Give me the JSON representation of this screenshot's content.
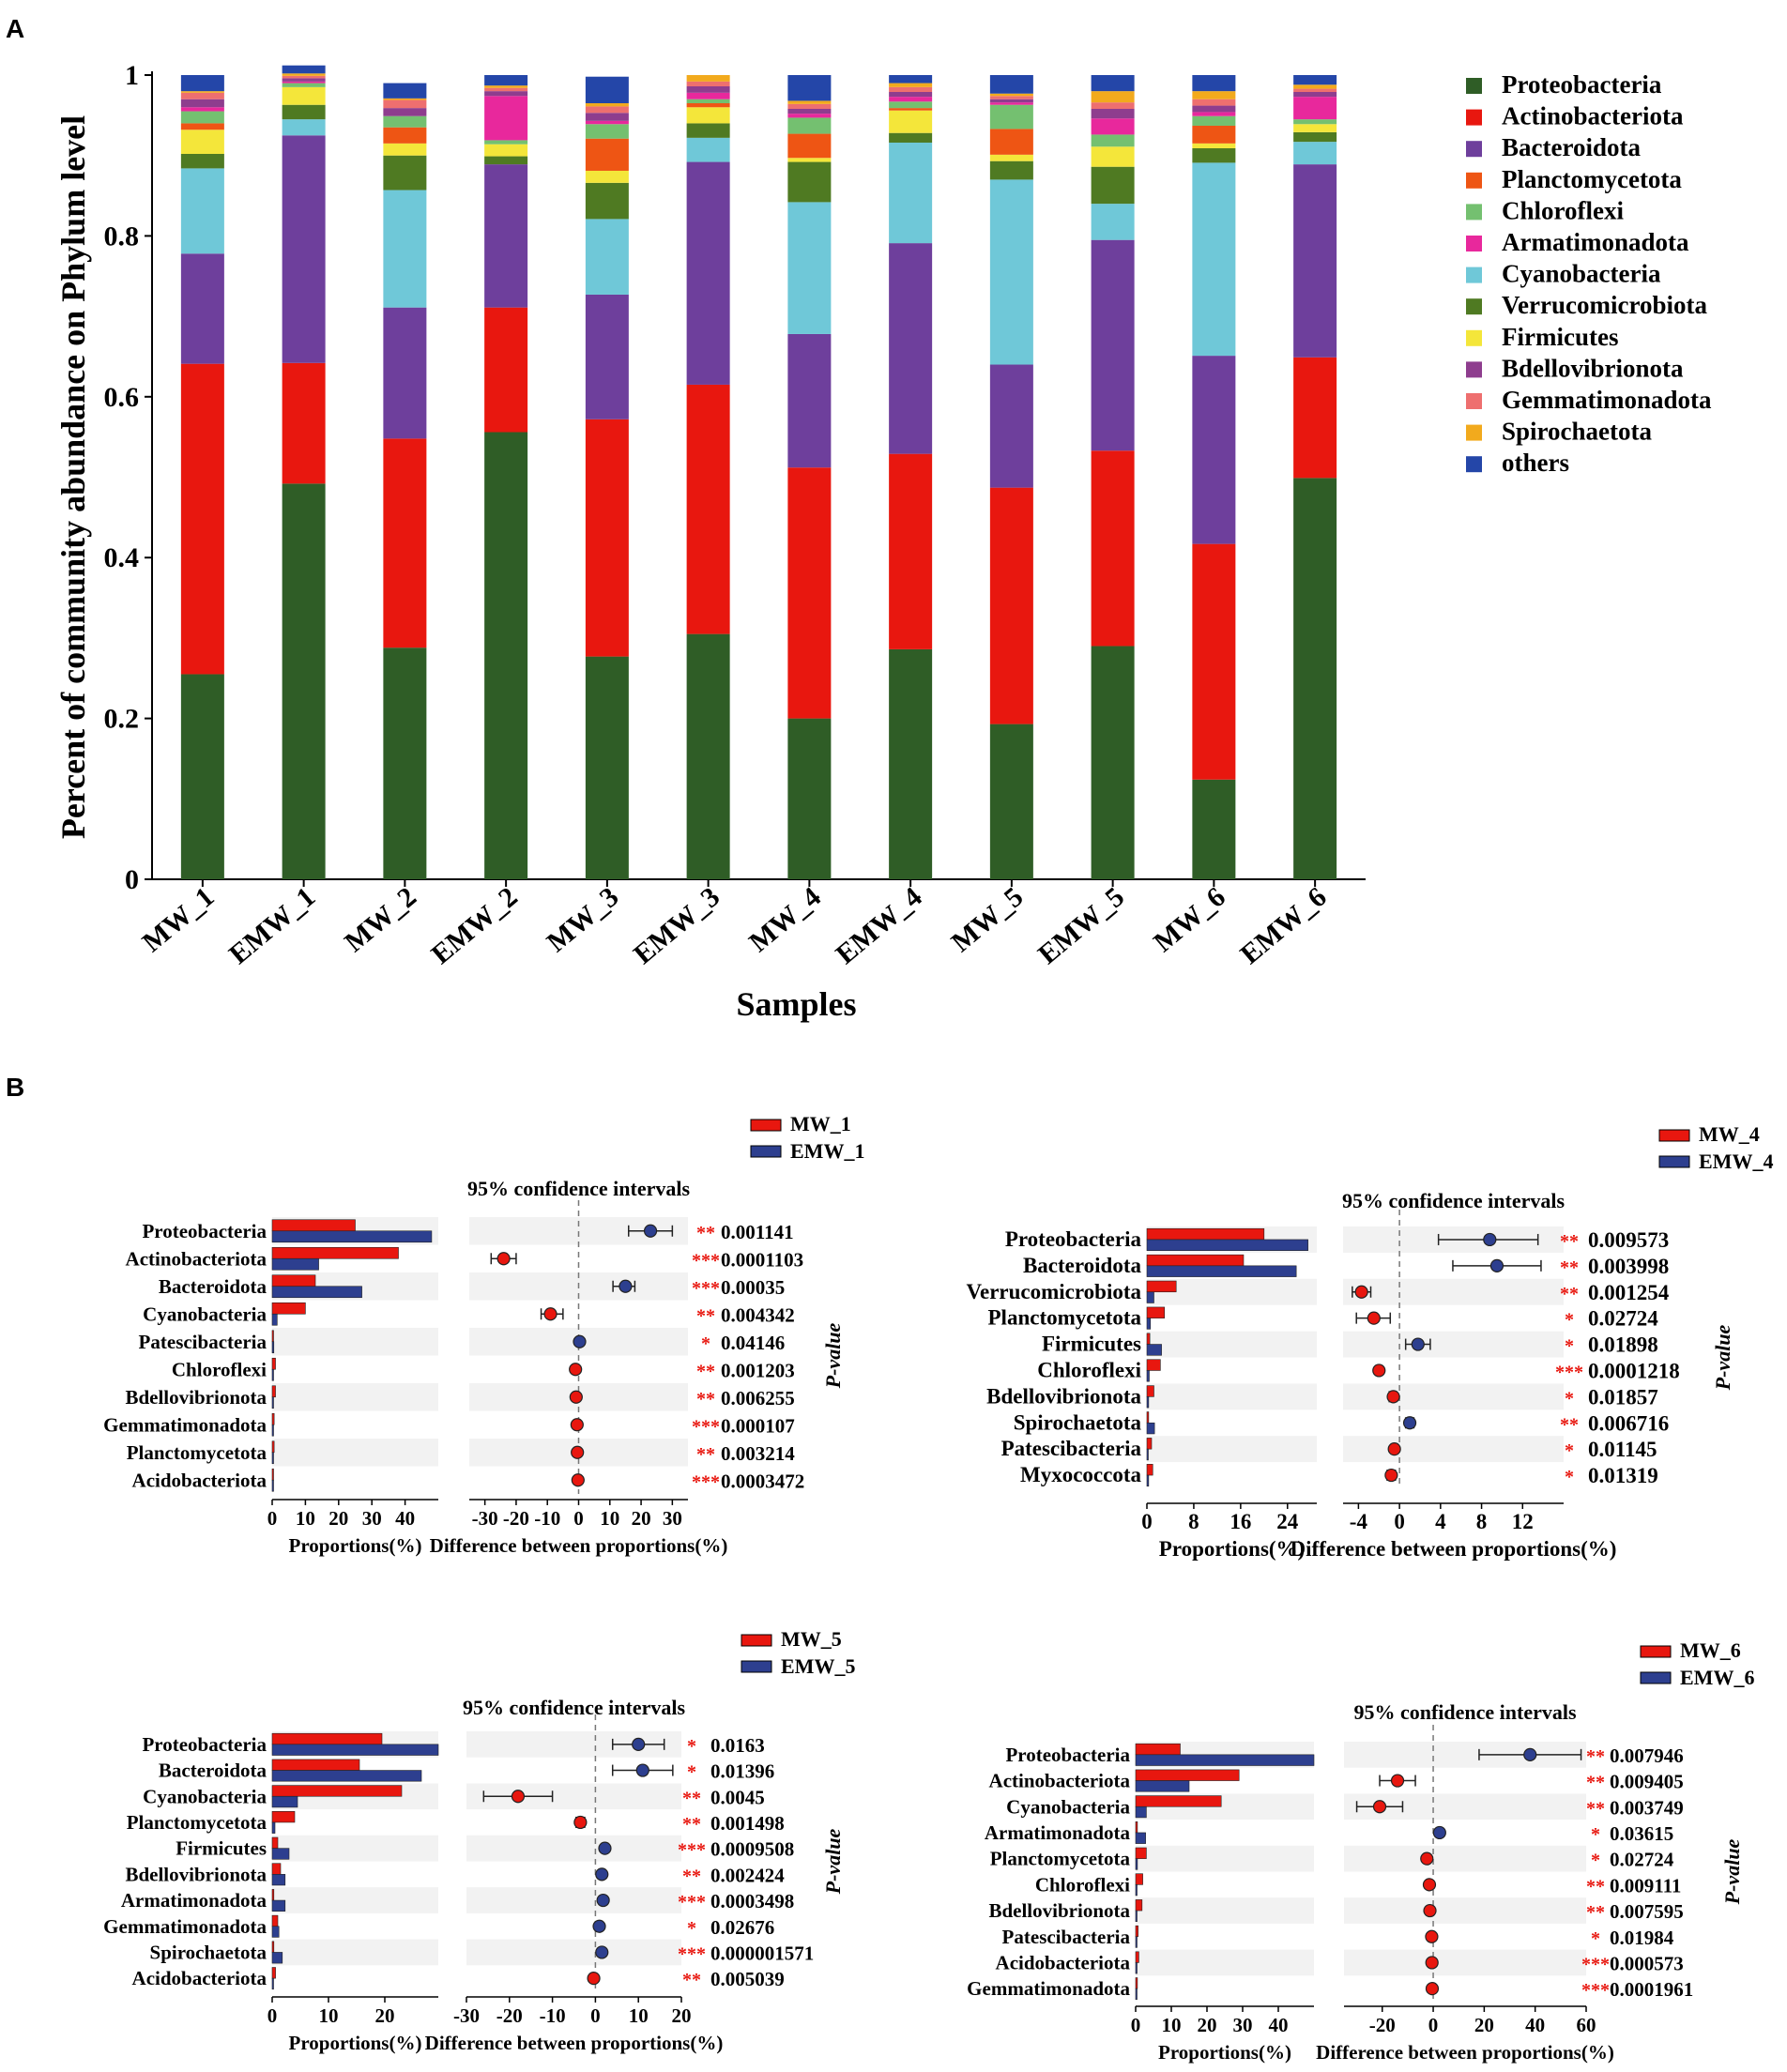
{
  "figure": {
    "panel_a_label": "A",
    "panel_b_label": "B"
  },
  "colors": {
    "Proteobacteria": "#2f5d26",
    "Actinobacteriota": "#e8170f",
    "Bacteroidota": "#6e3f9c",
    "Planctomycetota": "#ee5514",
    "Chloroflexi": "#74c070",
    "Armatimonadota": "#e8289c",
    "Cyanobacteria": "#6fc8d8",
    "Verrucomicrobiota": "#4f7a22",
    "Firmicutes": "#f4e63a",
    "Bdellovibrionota": "#8e3d8e",
    "Gemmatimonadota": "#ee6f6f",
    "Spirochaetota": "#f2aa1d",
    "others": "#2446a8",
    "group1": "#e8170f",
    "group2": "#2d3f8f",
    "row_band": "#f2f2f2"
  },
  "chart_data": [
    {
      "type": "bar",
      "stacked": true,
      "title": "",
      "xlabel": "Samples",
      "ylabel": "Percent of community abundance on Phylum level",
      "ylim": [
        0,
        1
      ],
      "yticks": [
        "0",
        "0.2",
        "0.4",
        "0.6",
        "0.8",
        "1"
      ],
      "legend_position": "right",
      "categories": [
        "MW_1",
        "EMW_1",
        "MW_2",
        "EMW_2",
        "MW_3",
        "EMW_3",
        "MW_4",
        "EMW_4",
        "MW_5",
        "EMW_5",
        "MW_6",
        "EMW_6"
      ],
      "series": [
        {
          "name": "Proteobacteria",
          "values": [
            0.255,
            0.492,
            0.288,
            0.556,
            0.277,
            0.305,
            0.2,
            0.286,
            0.193,
            0.29,
            0.124,
            0.499
          ]
        },
        {
          "name": "Actinobacteriota",
          "values": [
            0.386,
            0.15,
            0.26,
            0.155,
            0.295,
            0.31,
            0.312,
            0.243,
            0.294,
            0.243,
            0.293,
            0.15
          ]
        },
        {
          "name": "Bacteroidota",
          "values": [
            0.137,
            0.283,
            0.163,
            0.178,
            0.155,
            0.277,
            0.166,
            0.262,
            0.153,
            0.262,
            0.234,
            0.24
          ]
        },
        {
          "name": "Cyanobacteria",
          "values": [
            0.106,
            0.02,
            0.146,
            0.0,
            0.094,
            0.03,
            0.164,
            0.125,
            0.23,
            0.045,
            0.24,
            0.028
          ]
        },
        {
          "name": "Verrucomicrobiota",
          "values": [
            0.018,
            0.018,
            0.043,
            0.01,
            0.045,
            0.018,
            0.05,
            0.012,
            0.023,
            0.046,
            0.018,
            0.012
          ]
        },
        {
          "name": "Firmicutes",
          "values": [
            0.03,
            0.022,
            0.015,
            0.015,
            0.015,
            0.02,
            0.005,
            0.028,
            0.008,
            0.025,
            0.006,
            0.01
          ]
        },
        {
          "name": "Planctomycetota",
          "values": [
            0.008,
            0.0,
            0.02,
            0.0,
            0.04,
            0.005,
            0.03,
            0.003,
            0.032,
            0.0,
            0.022,
            0.0
          ]
        },
        {
          "name": "Chloroflexi",
          "values": [
            0.015,
            0.005,
            0.014,
            0.005,
            0.018,
            0.005,
            0.02,
            0.008,
            0.03,
            0.015,
            0.012,
            0.006
          ]
        },
        {
          "name": "Armatimonadota",
          "values": [
            0.005,
            0.002,
            0.0,
            0.055,
            0.004,
            0.008,
            0.005,
            0.006,
            0.003,
            0.02,
            0.005,
            0.028
          ]
        },
        {
          "name": "Bdellovibrionota",
          "values": [
            0.01,
            0.004,
            0.01,
            0.006,
            0.01,
            0.008,
            0.006,
            0.006,
            0.004,
            0.012,
            0.008,
            0.006
          ]
        },
        {
          "name": "Gemmatimonadota",
          "values": [
            0.008,
            0.003,
            0.01,
            0.004,
            0.008,
            0.006,
            0.006,
            0.006,
            0.004,
            0.008,
            0.008,
            0.004
          ]
        },
        {
          "name": "Spirochaetota",
          "values": [
            0.002,
            0.003,
            0.002,
            0.003,
            0.004,
            0.008,
            0.004,
            0.005,
            0.003,
            0.014,
            0.01,
            0.005
          ]
        },
        {
          "name": "others",
          "values": [
            0.02,
            0.01,
            0.019,
            0.013,
            0.033,
            0.0,
            0.032,
            0.01,
            0.023,
            0.02,
            0.02,
            0.012
          ]
        }
      ],
      "legend": [
        "Proteobacteria",
        "Actinobacteriota",
        "Bacteroidota",
        "Planctomycetota",
        "Chloroflexi",
        "Armatimonadota",
        "Cyanobacteria",
        "Verrucomicrobiota",
        "Firmicutes",
        "Bdellovibrionota",
        "Gemmatimonadota",
        "Spirochaetota",
        "others"
      ]
    },
    {
      "type": "extended-error-bar",
      "legend": [
        "MW_1",
        "EMW_1"
      ],
      "ci_title": "95% confidence intervals",
      "bar_xlabel": "Proportions(%)",
      "diff_xlabel": "Difference between proportions(%)",
      "pvalue_label": "P-value",
      "bar_xlim": [
        0,
        50
      ],
      "bar_ticks": [
        "0",
        "10",
        "20",
        "30",
        "40"
      ],
      "bar_tick_values": [
        0,
        10,
        20,
        30,
        40
      ],
      "diff_xlim": [
        -35,
        35
      ],
      "diff_ticks": [
        "-30",
        "-20",
        "-10",
        "0",
        "10",
        "20",
        "30"
      ],
      "diff_tick_values": [
        -30,
        -20,
        -10,
        0,
        10,
        20,
        30
      ],
      "rows": [
        {
          "name": "Proteobacteria",
          "g1": 25,
          "g2": 48,
          "diff": 23,
          "lo": 16,
          "hi": 30,
          "winner": 2,
          "p": "0.001141",
          "sig": "**"
        },
        {
          "name": "Actinobacteriota",
          "g1": 38,
          "g2": 14,
          "diff": -24,
          "lo": -28,
          "hi": -20,
          "winner": 1,
          "p": "0.0001103",
          "sig": "***"
        },
        {
          "name": "Bacteroidota",
          "g1": 13,
          "g2": 27,
          "diff": 15,
          "lo": 11,
          "hi": 18,
          "winner": 2,
          "p": "0.00035",
          "sig": "***"
        },
        {
          "name": "Cyanobacteria",
          "g1": 10,
          "g2": 1.5,
          "diff": -9,
          "lo": -12,
          "hi": -5,
          "winner": 1,
          "p": "0.004342",
          "sig": "**"
        },
        {
          "name": "Patescibacteria",
          "g1": 0.3,
          "g2": 0.5,
          "diff": 0.3,
          "lo": 0,
          "hi": 0.6,
          "winner": 2,
          "p": "0.04146",
          "sig": "*"
        },
        {
          "name": "Chloroflexi",
          "g1": 1,
          "g2": 0.3,
          "diff": -1,
          "lo": -1.5,
          "hi": -0.5,
          "winner": 1,
          "p": "0.001203",
          "sig": "**"
        },
        {
          "name": "Bdellovibrionota",
          "g1": 1,
          "g2": 0.3,
          "diff": -0.8,
          "lo": -1.2,
          "hi": -0.4,
          "winner": 1,
          "p": "0.006255",
          "sig": "**"
        },
        {
          "name": "Gemmatimonadota",
          "g1": 0.6,
          "g2": 0.2,
          "diff": -0.5,
          "lo": -0.8,
          "hi": -0.2,
          "winner": 1,
          "p": "0.000107",
          "sig": "***"
        },
        {
          "name": "Planctomycetota",
          "g1": 0.6,
          "g2": 0.2,
          "diff": -0.4,
          "lo": -0.7,
          "hi": -0.1,
          "winner": 1,
          "p": "0.003214",
          "sig": "**"
        },
        {
          "name": "Acidobacteriota",
          "g1": 0.3,
          "g2": 0.1,
          "diff": -0.2,
          "lo": -0.4,
          "hi": 0,
          "winner": 1,
          "p": "0.0003472",
          "sig": "***"
        }
      ]
    },
    {
      "type": "extended-error-bar",
      "legend": [
        "MW_4",
        "EMW_4"
      ],
      "ci_title": "95% confidence intervals",
      "bar_xlabel": "Proportions(%)",
      "diff_xlabel": "Difference between proportions(%)",
      "pvalue_label": "P-value",
      "bar_xlim": [
        0,
        29
      ],
      "bar_ticks": [
        "0",
        "8",
        "16",
        "24"
      ],
      "bar_tick_values": [
        0,
        8,
        16,
        24
      ],
      "diff_xlim": [
        -5.5,
        16
      ],
      "diff_ticks": [
        "-4",
        "0",
        "4",
        "8",
        "12"
      ],
      "diff_tick_values": [
        -4,
        0,
        4,
        8,
        12
      ],
      "rows": [
        {
          "name": "Proteobacteria",
          "g1": 20,
          "g2": 27.5,
          "diff": 8.8,
          "lo": 3.8,
          "hi": 13.5,
          "winner": 2,
          "p": "0.009573",
          "sig": "**"
        },
        {
          "name": "Bacteroidota",
          "g1": 16.5,
          "g2": 25.5,
          "diff": 9.5,
          "lo": 5.2,
          "hi": 13.8,
          "winner": 2,
          "p": "0.003998",
          "sig": "**"
        },
        {
          "name": "Verrucomicrobiota",
          "g1": 5,
          "g2": 1.2,
          "diff": -3.7,
          "lo": -4.6,
          "hi": -2.8,
          "winner": 1,
          "p": "0.001254",
          "sig": "**"
        },
        {
          "name": "Planctomycetota",
          "g1": 3,
          "g2": 0.6,
          "diff": -2.5,
          "lo": -4.2,
          "hi": -0.9,
          "winner": 1,
          "p": "0.02724",
          "sig": "*"
        },
        {
          "name": "Firmicutes",
          "g1": 0.5,
          "g2": 2.5,
          "diff": 1.8,
          "lo": 0.6,
          "hi": 3.0,
          "winner": 2,
          "p": "0.01898",
          "sig": "*"
        },
        {
          "name": "Chloroflexi",
          "g1": 2.3,
          "g2": 0.4,
          "diff": -2.0,
          "lo": -2.3,
          "hi": -1.7,
          "winner": 1,
          "p": "0.0001218",
          "sig": "***"
        },
        {
          "name": "Bdellovibrionota",
          "g1": 1.2,
          "g2": 0.3,
          "diff": -0.6,
          "lo": -1.0,
          "hi": -0.3,
          "winner": 1,
          "p": "0.01857",
          "sig": "*"
        },
        {
          "name": "Spirochaetota",
          "g1": 0.3,
          "g2": 1.3,
          "diff": 1.0,
          "lo": 0.6,
          "hi": 1.4,
          "winner": 2,
          "p": "0.006716",
          "sig": "**"
        },
        {
          "name": "Patescibacteria",
          "g1": 0.8,
          "g2": 0.2,
          "diff": -0.5,
          "lo": -0.8,
          "hi": -0.2,
          "winner": 1,
          "p": "0.01145",
          "sig": "*"
        },
        {
          "name": "Myxococcota",
          "g1": 1,
          "g2": 0.3,
          "diff": -0.8,
          "lo": -1.2,
          "hi": -0.4,
          "winner": 1,
          "p": "0.01319",
          "sig": "*"
        }
      ]
    },
    {
      "type": "extended-error-bar",
      "legend": [
        "MW_5",
        "EMW_5"
      ],
      "ci_title": "95% confidence intervals",
      "bar_xlabel": "Proportions(%)",
      "diff_xlabel": "Difference between proportions(%)",
      "pvalue_label": "P-value",
      "bar_xlim": [
        0,
        29.5
      ],
      "bar_ticks": [
        "0",
        "10",
        "20"
      ],
      "bar_tick_values": [
        0,
        10,
        20
      ],
      "diff_xlim": [
        -30,
        20
      ],
      "diff_ticks": [
        "-30",
        "-20",
        "-10",
        "0",
        "10",
        "20"
      ],
      "diff_tick_values": [
        -30,
        -20,
        -10,
        0,
        10,
        20
      ],
      "rows": [
        {
          "name": "Proteobacteria",
          "g1": 19.5,
          "g2": 29.5,
          "diff": 10,
          "lo": 4,
          "hi": 16,
          "winner": 2,
          "p": "0.0163",
          "sig": "*"
        },
        {
          "name": "Bacteroidota",
          "g1": 15.5,
          "g2": 26.5,
          "diff": 11,
          "lo": 4,
          "hi": 18,
          "winner": 2,
          "p": "0.01396",
          "sig": "*"
        },
        {
          "name": "Cyanobacteria",
          "g1": 23,
          "g2": 4.5,
          "diff": -18,
          "lo": -26,
          "hi": -10,
          "winner": 1,
          "p": "0.0045",
          "sig": "**"
        },
        {
          "name": "Planctomycetota",
          "g1": 4,
          "g2": 0.5,
          "diff": -3.5,
          "lo": -4.5,
          "hi": -2.5,
          "winner": 1,
          "p": "0.001498",
          "sig": "**"
        },
        {
          "name": "Firmicutes",
          "g1": 1,
          "g2": 3,
          "diff": 2.2,
          "lo": 1.6,
          "hi": 2.8,
          "winner": 2,
          "p": "0.0009508",
          "sig": "***"
        },
        {
          "name": "Bdellovibrionota",
          "g1": 1.5,
          "g2": 2.3,
          "diff": 1.5,
          "lo": 1,
          "hi": 2,
          "winner": 2,
          "p": "0.002424",
          "sig": "**"
        },
        {
          "name": "Armatimonadota",
          "g1": 0.3,
          "g2": 2.3,
          "diff": 1.8,
          "lo": 1.3,
          "hi": 2.3,
          "winner": 2,
          "p": "0.0003498",
          "sig": "***"
        },
        {
          "name": "Gemmatimonadota",
          "g1": 1,
          "g2": 1.2,
          "diff": 0.9,
          "lo": 0.5,
          "hi": 1.3,
          "winner": 2,
          "p": "0.02676",
          "sig": "*"
        },
        {
          "name": "Spirochaetota",
          "g1": 0.3,
          "g2": 1.8,
          "diff": 1.5,
          "lo": 1.1,
          "hi": 1.9,
          "winner": 2,
          "p": "0.000001571",
          "sig": "***"
        },
        {
          "name": "Acidobacteriota",
          "g1": 0.6,
          "g2": 0.2,
          "diff": -0.4,
          "lo": -0.8,
          "hi": 0,
          "winner": 1,
          "p": "0.005039",
          "sig": "**"
        }
      ]
    },
    {
      "type": "extended-error-bar",
      "legend": [
        "MW_6",
        "EMW_6"
      ],
      "ci_title": "95% confidence intervals",
      "bar_xlabel": "Proportions(%)",
      "diff_xlabel": "Difference between proportions(%)",
      "pvalue_label": "P-value",
      "bar_xlim": [
        0,
        50
      ],
      "bar_ticks": [
        "0",
        "10",
        "20",
        "30",
        "40"
      ],
      "bar_tick_values": [
        0,
        10,
        20,
        30,
        40
      ],
      "diff_xlim": [
        -35,
        60
      ],
      "diff_ticks": [
        "-20",
        "0",
        "20",
        "40",
        "60"
      ],
      "diff_tick_values": [
        -20,
        0,
        20,
        40,
        60
      ],
      "rows": [
        {
          "name": "Proteobacteria",
          "g1": 12.5,
          "g2": 50,
          "diff": 38,
          "lo": 18,
          "hi": 58,
          "winner": 2,
          "p": "0.007946",
          "sig": "**"
        },
        {
          "name": "Actinobacteriota",
          "g1": 29,
          "g2": 15,
          "diff": -14,
          "lo": -21,
          "hi": -7,
          "winner": 1,
          "p": "0.009405",
          "sig": "**"
        },
        {
          "name": "Cyanobacteria",
          "g1": 24,
          "g2": 3,
          "diff": -21,
          "lo": -30,
          "hi": -12,
          "winner": 1,
          "p": "0.003749",
          "sig": "**"
        },
        {
          "name": "Armatimonadota",
          "g1": 0.5,
          "g2": 2.8,
          "diff": 2.5,
          "lo": 1.8,
          "hi": 3.4,
          "winner": 2,
          "p": "0.03615",
          "sig": "*"
        },
        {
          "name": "Planctomycetota",
          "g1": 3,
          "g2": 0.5,
          "diff": -2.5,
          "lo": -3.5,
          "hi": -1.5,
          "winner": 1,
          "p": "0.02724",
          "sig": "*"
        },
        {
          "name": "Chloroflexi",
          "g1": 2,
          "g2": 0.4,
          "diff": -1.5,
          "lo": -2.1,
          "hi": -0.9,
          "winner": 1,
          "p": "0.009111",
          "sig": "**"
        },
        {
          "name": "Bdellovibrionota",
          "g1": 1.8,
          "g2": 0.3,
          "diff": -1.3,
          "lo": -1.9,
          "hi": -0.7,
          "winner": 1,
          "p": "0.007595",
          "sig": "**"
        },
        {
          "name": "Patescibacteria",
          "g1": 0.7,
          "g2": 0.1,
          "diff": -0.6,
          "lo": -1,
          "hi": -0.2,
          "winner": 1,
          "p": "0.01984",
          "sig": "*"
        },
        {
          "name": "Acidobacteriota",
          "g1": 0.9,
          "g2": 0.1,
          "diff": -0.5,
          "lo": -0.9,
          "hi": -0.2,
          "winner": 1,
          "p": "0.000573",
          "sig": "***"
        },
        {
          "name": "Gemmatimonadota",
          "g1": 0.5,
          "g2": 0.1,
          "diff": -0.4,
          "lo": -0.7,
          "hi": -0.1,
          "winner": 1,
          "p": "0.0001961",
          "sig": "***"
        }
      ]
    }
  ]
}
